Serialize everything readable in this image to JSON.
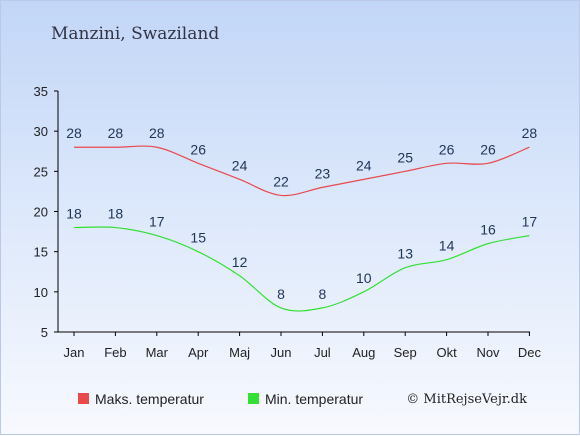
{
  "chart_data": {
    "type": "line",
    "title": "Manzini, Swaziland",
    "categories": [
      "Jan",
      "Feb",
      "Mar",
      "Apr",
      "Maj",
      "Jun",
      "Jul",
      "Aug",
      "Sep",
      "Okt",
      "Nov",
      "Dec"
    ],
    "series": [
      {
        "name": "Maks. temperatur",
        "color": "#e8494b",
        "values": [
          28,
          28,
          28,
          26,
          24,
          22,
          23,
          24,
          25,
          26,
          26,
          28
        ]
      },
      {
        "name": "Min. temperatur",
        "color": "#33e033",
        "values": [
          18,
          18,
          17,
          15,
          12,
          8,
          8,
          10,
          13,
          14,
          16,
          17
        ]
      }
    ],
    "y_ticks": [
      5,
      10,
      15,
      20,
      25,
      30,
      35
    ],
    "ylim": [
      5,
      35
    ],
    "grid": false,
    "legend_position": "bottom"
  },
  "credit": "© MitRejseVejr.dk"
}
